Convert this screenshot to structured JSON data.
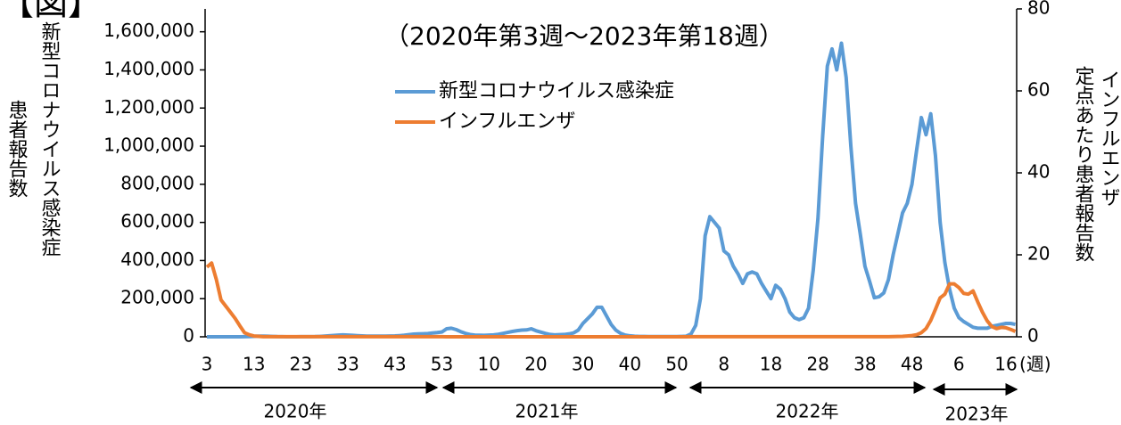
{
  "chart_data": {
    "type": "line",
    "title": "【図】",
    "subtitle": "（2020年第3週～2023年第18週）",
    "y_label_1": "患者報告数",
    "y_label_2": "新型コロナウイルス感染症",
    "y2_label_1": "定点あたり患者報告数",
    "y2_label_2": "インフルエンザ",
    "x_unit": "(週)",
    "years": [
      "2020年",
      "2021年",
      "2022年",
      "2023年"
    ],
    "categories": [
      "3",
      null,
      null,
      null,
      null,
      null,
      null,
      null,
      null,
      null,
      "13",
      null,
      null,
      null,
      null,
      null,
      null,
      null,
      null,
      null,
      "23",
      null,
      null,
      null,
      null,
      null,
      null,
      null,
      null,
      null,
      "33",
      null,
      null,
      null,
      null,
      null,
      null,
      null,
      null,
      null,
      "43",
      null,
      null,
      null,
      null,
      null,
      null,
      null,
      null,
      null,
      "53",
      null,
      null,
      null,
      null,
      null,
      null,
      null,
      null,
      null,
      "10",
      null,
      null,
      null,
      null,
      null,
      null,
      null,
      null,
      null,
      "20",
      null,
      null,
      null,
      null,
      null,
      null,
      null,
      null,
      null,
      "30",
      null,
      null,
      null,
      null,
      null,
      null,
      null,
      null,
      null,
      "40",
      null,
      null,
      null,
      null,
      null,
      null,
      null,
      null,
      null,
      "50",
      null,
      null,
      null,
      null,
      null,
      null,
      null,
      null,
      null,
      "8",
      null,
      null,
      null,
      null,
      null,
      null,
      null,
      null,
      null,
      "18",
      null,
      null,
      null,
      null,
      null,
      null,
      null,
      null,
      null,
      "28",
      null,
      null,
      null,
      null,
      null,
      null,
      null,
      null,
      null,
      "38",
      null,
      null,
      null,
      null,
      null,
      null,
      null,
      null,
      null,
      "48",
      null,
      null,
      null,
      null,
      null,
      null,
      null,
      null,
      null,
      "6",
      null,
      null,
      null,
      null,
      null,
      null,
      null,
      null,
      null,
      "16",
      null,
      null
    ],
    "series": [
      {
        "name": "新型コロナウイルス感染症",
        "color": "#5b9bd5",
        "axis": "y",
        "values": [
          0,
          0,
          0,
          0,
          0,
          0,
          0,
          300,
          600,
          1200,
          2500,
          3500,
          3800,
          3000,
          2000,
          1000,
          500,
          300,
          250,
          300,
          350,
          400,
          600,
          1000,
          2000,
          3500,
          5000,
          7000,
          9000,
          10000,
          9000,
          7500,
          6000,
          4500,
          3500,
          3500,
          3500,
          3500,
          3600,
          4000,
          4500,
          6000,
          8000,
          11000,
          14000,
          15000,
          16000,
          17000,
          20000,
          22000,
          25000,
          42000,
          45000,
          38000,
          27000,
          18000,
          12000,
          9000,
          8000,
          7500,
          8500,
          10000,
          13000,
          18000,
          23000,
          28000,
          32000,
          35000,
          36000,
          42000,
          32000,
          25000,
          18000,
          12000,
          10000,
          11000,
          12000,
          15000,
          20000,
          35000,
          70000,
          95000,
          120000,
          155000,
          155000,
          110000,
          65000,
          35000,
          18000,
          9000,
          5000,
          3000,
          2000,
          1500,
          1200,
          1000,
          900,
          900,
          1000,
          1100,
          1300,
          1800,
          3000,
          15000,
          60000,
          200000,
          530000,
          630000,
          600000,
          570000,
          450000,
          430000,
          370000,
          330000,
          280000,
          330000,
          340000,
          330000,
          280000,
          240000,
          200000,
          270000,
          250000,
          200000,
          130000,
          100000,
          90000,
          100000,
          150000,
          350000,
          620000,
          1050000,
          1420000,
          1510000,
          1400000,
          1540000,
          1360000,
          1000000,
          700000,
          540000,
          370000,
          290000,
          205000,
          210000,
          230000,
          300000,
          430000,
          540000,
          650000,
          700000,
          800000,
          980000,
          1150000,
          1060000,
          1170000,
          950000,
          600000,
          390000,
          250000,
          150000,
          100000,
          80000,
          65000,
          50000,
          45000,
          45000,
          45000,
          55000,
          60000,
          65000,
          70000,
          70000,
          65000
        ]
      },
      {
        "name": "インフルエンザ",
        "color": "#ed7d31",
        "axis": "y2",
        "values": [
          17,
          18,
          14,
          9,
          7.5,
          6,
          4.5,
          2.7,
          1,
          0.5,
          0.2,
          0.1,
          0.02,
          0.02,
          0.02,
          0.02,
          0.02,
          0.02,
          0.02,
          0.02,
          0.02,
          0.02,
          0.02,
          0.02,
          0.02,
          0.02,
          0.02,
          0.02,
          0.02,
          0.02,
          0.02,
          0.02,
          0.02,
          0.02,
          0.02,
          0.02,
          0.02,
          0.02,
          0.02,
          0.02,
          0.02,
          0.02,
          0.02,
          0.02,
          0.02,
          0.02,
          0.02,
          0.02,
          0.02,
          0.02,
          0.02,
          0.01,
          0.01,
          0.01,
          0.01,
          0.01,
          0.01,
          0.01,
          0.01,
          0.01,
          0.01,
          0.01,
          0.01,
          0.01,
          0.01,
          0.01,
          0.01,
          0.01,
          0.01,
          0.01,
          0.01,
          0.01,
          0.01,
          0.01,
          0.01,
          0.01,
          0.01,
          0.01,
          0.01,
          0.01,
          0.01,
          0.01,
          0.01,
          0.01,
          0.01,
          0.01,
          0.01,
          0.01,
          0.01,
          0.01,
          0.01,
          0.01,
          0.01,
          0.01,
          0.01,
          0.01,
          0.01,
          0.01,
          0.01,
          0.01,
          0.01,
          0.01,
          0.01,
          0.02,
          0.02,
          0.02,
          0.02,
          0.02,
          0.02,
          0.02,
          0.02,
          0.02,
          0.02,
          0.02,
          0.02,
          0.02,
          0.02,
          0.02,
          0.02,
          0.02,
          0.02,
          0.02,
          0.02,
          0.02,
          0.02,
          0.02,
          0.02,
          0.02,
          0.02,
          0.02,
          0.02,
          0.02,
          0.02,
          0.02,
          0.02,
          0.02,
          0.02,
          0.02,
          0.02,
          0.02,
          0.02,
          0.02,
          0.02,
          0.02,
          0.02,
          0.02,
          0.05,
          0.08,
          0.1,
          0.2,
          0.3,
          0.5,
          1.0,
          2.0,
          4.0,
          6.7,
          9.5,
          10.4,
          12.9,
          12.9,
          12.0,
          10.6,
          10.4,
          11.2,
          8.5,
          6.0,
          3.9,
          2.5,
          2.0,
          2.3,
          2.2,
          1.8,
          1.3
        ]
      }
    ],
    "ylim": [
      0,
      1720000
    ],
    "yticks": [
      0,
      {
        "value": 200000,
        "label": "200,000"
      },
      {
        "value": 400000,
        "label": "400,000"
      },
      {
        "value": 600000,
        "label": "600,000"
      },
      {
        "value": 800000,
        "label": "800,000"
      },
      {
        "value": 1000000,
        "label": "1,000,000"
      },
      {
        "value": 1200000,
        "label": "1,200,000"
      },
      {
        "value": 1400000,
        "label": "1,400,000"
      },
      {
        "value": 1600000,
        "label": "1,600,000"
      }
    ],
    "y2lim": [
      0,
      80
    ],
    "y2ticks": [
      0,
      20,
      40,
      60,
      80
    ],
    "grid": false
  }
}
